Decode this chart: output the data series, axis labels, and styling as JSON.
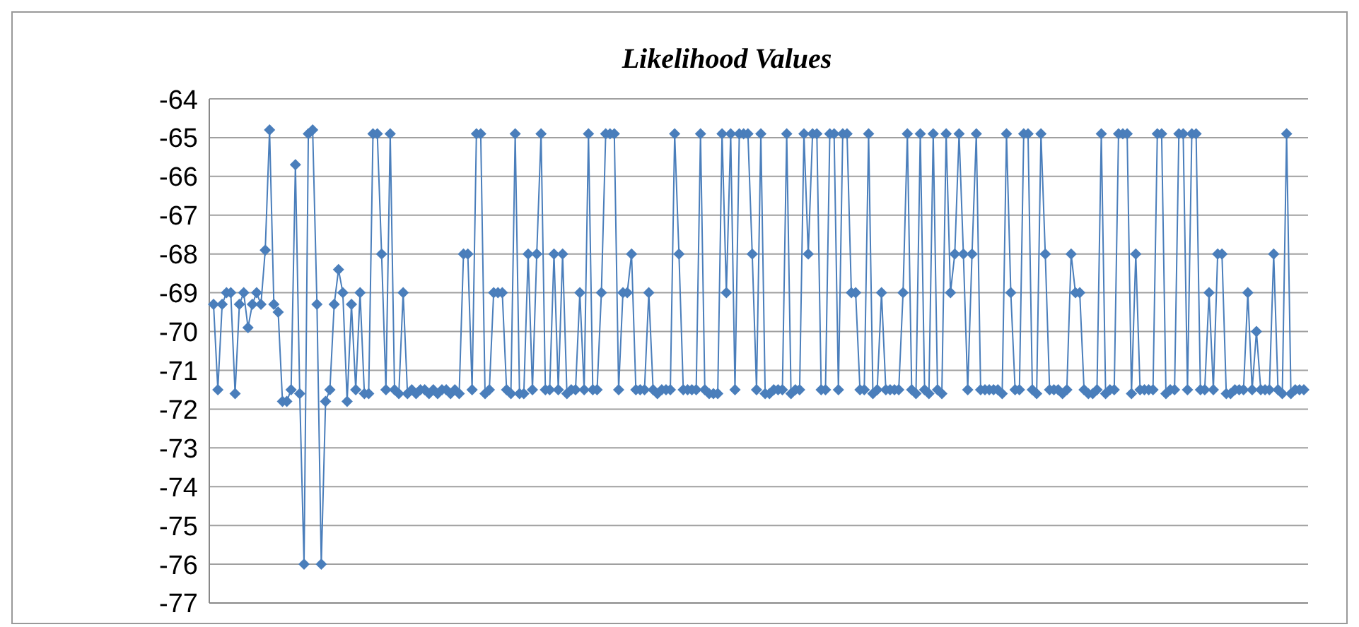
{
  "chart_data": {
    "type": "line",
    "title": "Likelihood Values",
    "tick_labels": "y",
    "grid": "y",
    "marker": "diamond",
    "line_style": "solid",
    "ylim": [
      -77,
      -64
    ],
    "yticks": [
      -77,
      -76,
      -75,
      -74,
      -73,
      -72,
      -71,
      -70,
      -69,
      -68,
      -67,
      -66,
      -65,
      -64
    ],
    "categories": [
      null,
      null,
      null,
      null,
      null,
      null,
      null,
      null,
      null,
      null,
      null,
      null,
      null,
      null,
      null,
      null,
      null,
      null,
      null,
      null,
      null,
      null,
      null,
      null,
      null,
      null,
      null,
      null,
      null,
      null,
      null,
      null,
      null,
      null,
      null,
      null,
      null,
      null,
      null,
      null,
      null,
      null,
      null,
      null,
      null,
      null,
      null,
      null,
      null,
      null,
      null,
      null,
      null,
      null,
      null,
      null,
      null,
      null,
      null,
      null,
      null,
      null,
      null,
      null,
      null,
      null,
      null,
      null,
      null,
      null,
      null,
      null,
      null,
      null,
      null,
      null,
      null,
      null,
      null,
      null,
      null,
      null,
      null,
      null,
      null,
      null,
      null,
      null,
      null,
      null,
      null,
      null,
      null,
      null,
      null,
      null,
      null,
      null,
      null,
      null,
      null,
      null,
      null,
      null,
      null,
      null,
      null,
      null,
      null,
      null,
      null,
      null,
      null,
      null,
      null,
      null,
      null,
      null,
      null,
      null,
      null,
      null,
      null,
      null,
      null,
      null,
      null,
      null,
      null,
      null,
      null,
      null,
      null,
      null,
      null,
      null,
      null,
      null,
      null,
      null,
      null,
      null,
      null,
      null,
      null,
      null,
      null,
      null,
      null,
      null,
      null,
      null,
      null,
      null,
      null,
      null,
      null,
      null,
      null,
      null,
      null,
      null,
      null,
      null,
      null,
      null,
      null,
      null,
      null,
      null,
      null,
      null,
      null,
      null,
      null,
      null,
      null,
      null,
      null,
      null,
      null,
      null,
      null,
      null,
      null,
      null,
      null,
      null,
      null,
      null,
      null,
      null,
      null,
      null,
      null,
      null,
      null,
      null,
      null,
      null,
      null,
      null,
      null,
      null,
      null,
      null,
      null,
      null,
      null,
      null,
      null,
      null,
      null,
      null,
      null,
      null,
      null,
      null,
      null,
      null,
      null,
      null,
      null,
      null,
      null,
      null,
      null,
      null,
      null,
      null,
      null,
      null,
      null,
      null,
      null,
      null,
      null,
      null,
      null,
      null,
      null,
      null,
      null,
      null,
      null,
      null,
      null,
      null,
      null,
      null,
      null,
      null,
      null,
      null
    ],
    "series": [
      {
        "color": "#4a7ebb",
        "values": [
          -69.3,
          -71.5,
          -69.3,
          -69,
          -69,
          -71.6,
          -69.3,
          -69,
          -69.9,
          -69.3,
          -69,
          -69.3,
          -67.9,
          -64.8,
          -69.3,
          -69.5,
          -71.8,
          -71.8,
          -71.5,
          -65.7,
          -71.6,
          -76,
          -64.9,
          -64.8,
          -69.3,
          -76,
          -71.8,
          -71.5,
          -69.3,
          -68.4,
          -69,
          -71.8,
          -69.3,
          -71.5,
          -69,
          -71.6,
          -71.6,
          -64.9,
          -64.9,
          -68,
          -71.5,
          -64.9,
          -71.5,
          -71.6,
          -69,
          -71.6,
          -71.5,
          -71.6,
          -71.5,
          -71.5,
          -71.6,
          -71.5,
          -71.6,
          -71.5,
          -71.5,
          -71.6,
          -71.5,
          -71.6,
          -68,
          -68,
          -71.5,
          -64.9,
          -64.9,
          -71.6,
          -71.5,
          -69,
          -69,
          -69,
          -71.5,
          -71.6,
          -64.9,
          -71.6,
          -71.6,
          -68,
          -71.5,
          -68,
          -64.9,
          -71.5,
          -71.5,
          -68,
          -71.5,
          -68,
          -71.6,
          -71.5,
          -71.5,
          -69,
          -71.5,
          -64.9,
          -71.5,
          -71.5,
          -69,
          -64.9,
          -64.9,
          -64.9,
          -71.5,
          -69,
          -69,
          -68,
          -71.5,
          -71.5,
          -71.5,
          -69,
          -71.5,
          -71.6,
          -71.5,
          -71.5,
          -71.5,
          -64.9,
          -68,
          -71.5,
          -71.5,
          -71.5,
          -71.5,
          -64.9,
          -71.5,
          -71.6,
          -71.6,
          -71.6,
          -64.9,
          -69,
          -64.9,
          -71.5,
          -64.9,
          -64.9,
          -64.9,
          -68,
          -71.5,
          -64.9,
          -71.6,
          -71.6,
          -71.5,
          -71.5,
          -71.5,
          -64.9,
          -71.6,
          -71.5,
          -71.5,
          -64.9,
          -68,
          -64.9,
          -64.9,
          -71.5,
          -71.5,
          -64.9,
          -64.9,
          -71.5,
          -64.9,
          -64.9,
          -69,
          -69,
          -71.5,
          -71.5,
          -64.9,
          -71.6,
          -71.5,
          -69,
          -71.5,
          -71.5,
          -71.5,
          -71.5,
          -69,
          -64.9,
          -71.5,
          -71.6,
          -64.9,
          -71.5,
          -71.6,
          -64.9,
          -71.5,
          -71.6,
          -64.9,
          -69,
          -68,
          -64.9,
          -68,
          -71.5,
          -68,
          -64.9,
          -71.5,
          -71.5,
          -71.5,
          -71.5,
          -71.5,
          -71.6,
          -64.9,
          -69,
          -71.5,
          -71.5,
          -64.9,
          -64.9,
          -71.5,
          -71.6,
          -64.9,
          -68,
          -71.5,
          -71.5,
          -71.5,
          -71.6,
          -71.5,
          -68,
          -69,
          -69,
          -71.5,
          -71.6,
          -71.6,
          -71.5,
          -64.9,
          -71.6,
          -71.5,
          -71.5,
          -64.9,
          -64.9,
          -64.9,
          -71.6,
          -68,
          -71.5,
          -71.5,
          -71.5,
          -71.5,
          -64.9,
          -64.9,
          -71.6,
          -71.5,
          -71.5,
          -64.9,
          -64.9,
          -71.5,
          -64.9,
          -64.9,
          -71.5,
          -71.5,
          -69,
          -71.5,
          -68,
          -68,
          -71.6,
          -71.6,
          -71.5,
          -71.5,
          -71.5,
          -69,
          -71.5,
          -70,
          -71.5,
          -71.5,
          -71.5,
          -68,
          -71.5,
          -71.6,
          -64.9,
          -71.6,
          -71.5,
          -71.5,
          -71.5
        ]
      }
    ]
  }
}
